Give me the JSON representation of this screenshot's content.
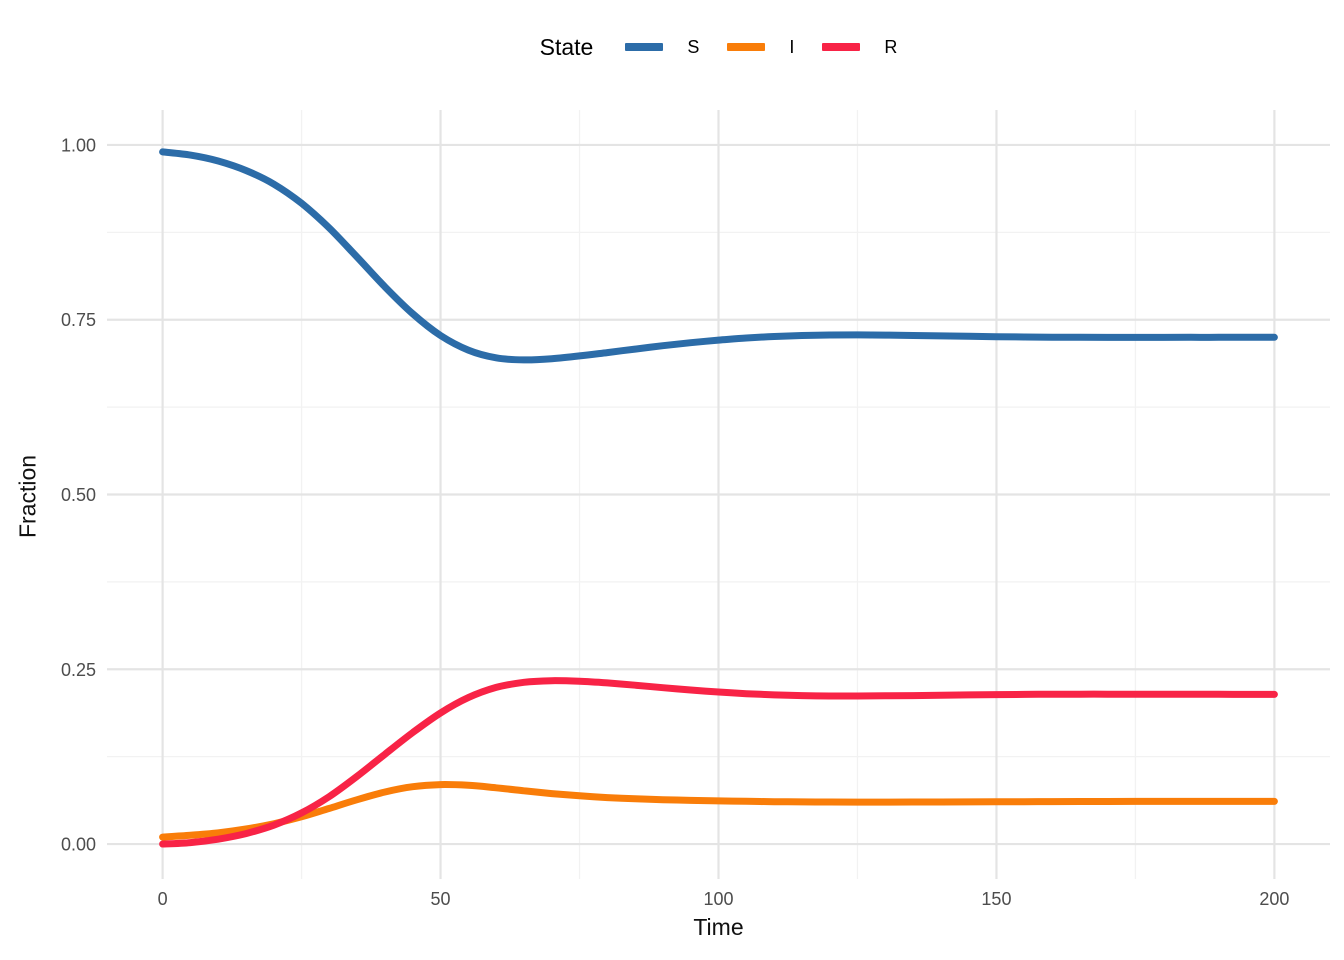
{
  "figure": {
    "background": "#FFFFFF"
  },
  "legend": {
    "title": "State",
    "items": [
      {
        "label": "S",
        "color": "#2C6CA8"
      },
      {
        "label": "I",
        "color": "#F97D09"
      },
      {
        "label": "R",
        "color": "#F82346"
      }
    ]
  },
  "styles": {
    "grid_major": "#E4E4E4",
    "grid_minor": "#F2F2F2",
    "tick_label_color": "#4D4D4D",
    "line_width": 7
  },
  "chart_data": {
    "type": "line",
    "title": "",
    "xlabel": "Time",
    "ylabel": "Fraction",
    "xlim": [
      0,
      200
    ],
    "ylim": [
      0,
      1
    ],
    "expand": 0.05,
    "grid": "on",
    "legend_position": "top",
    "x_ticks": {
      "values": [
        0,
        50,
        100,
        150,
        200
      ],
      "labels": [
        "0",
        "50",
        "100",
        "150",
        "200"
      ]
    },
    "y_ticks": {
      "values": [
        0,
        0.25,
        0.5,
        0.75,
        1
      ],
      "labels": [
        "0.00",
        "0.25",
        "0.50",
        "0.75",
        "1.00"
      ]
    },
    "x_minor": [
      25,
      75,
      125,
      175
    ],
    "y_minor": [
      0.125,
      0.375,
      0.625,
      0.875
    ],
    "x": [
      0,
      5,
      10,
      15,
      20,
      25,
      30,
      35,
      40,
      45,
      50,
      55,
      60,
      65,
      70,
      75,
      80,
      85,
      90,
      95,
      100,
      105,
      110,
      115,
      120,
      125,
      130,
      135,
      140,
      145,
      150,
      155,
      160,
      165,
      170,
      175,
      180,
      185,
      190,
      195,
      200
    ],
    "series": [
      {
        "name": "S",
        "color": "#2C6CA8",
        "values": [
          0.99,
          0.9855,
          0.977,
          0.9635,
          0.944,
          0.9165,
          0.881,
          0.8395,
          0.797,
          0.7585,
          0.7275,
          0.7065,
          0.6955,
          0.6925,
          0.6942,
          0.6982,
          0.703,
          0.708,
          0.7128,
          0.7171,
          0.7208,
          0.7238,
          0.726,
          0.7274,
          0.7281,
          0.7283,
          0.728,
          0.7275,
          0.7269,
          0.7263,
          0.7257,
          0.7253,
          0.725,
          0.7248,
          0.7247,
          0.7247,
          0.7247,
          0.7248,
          0.7248,
          0.7249,
          0.7249
        ]
      },
      {
        "name": "I",
        "color": "#F97D09",
        "values": [
          0.01,
          0.0125,
          0.016,
          0.0215,
          0.029,
          0.039,
          0.051,
          0.0635,
          0.0745,
          0.082,
          0.085,
          0.084,
          0.0805,
          0.0762,
          0.0722,
          0.069,
          0.0665,
          0.0648,
          0.0635,
          0.0625,
          0.0617,
          0.0611,
          0.0606,
          0.0603,
          0.0601,
          0.06,
          0.06,
          0.0601,
          0.0602,
          0.0603,
          0.0605,
          0.0606,
          0.0607,
          0.0608,
          0.0609,
          0.061,
          0.061,
          0.061,
          0.061,
          0.061,
          0.061
        ]
      },
      {
        "name": "R",
        "color": "#F82346",
        "values": [
          0.0,
          0.002,
          0.007,
          0.015,
          0.027,
          0.0445,
          0.068,
          0.097,
          0.1285,
          0.1595,
          0.1875,
          0.2095,
          0.224,
          0.2313,
          0.2336,
          0.2328,
          0.2305,
          0.2272,
          0.2237,
          0.2204,
          0.2175,
          0.2151,
          0.2134,
          0.2123,
          0.2118,
          0.2117,
          0.212,
          0.2124,
          0.2129,
          0.2134,
          0.2138,
          0.2141,
          0.2143,
          0.2144,
          0.2144,
          0.2143,
          0.2143,
          0.2142,
          0.2142,
          0.2141,
          0.2141
        ]
      }
    ]
  }
}
